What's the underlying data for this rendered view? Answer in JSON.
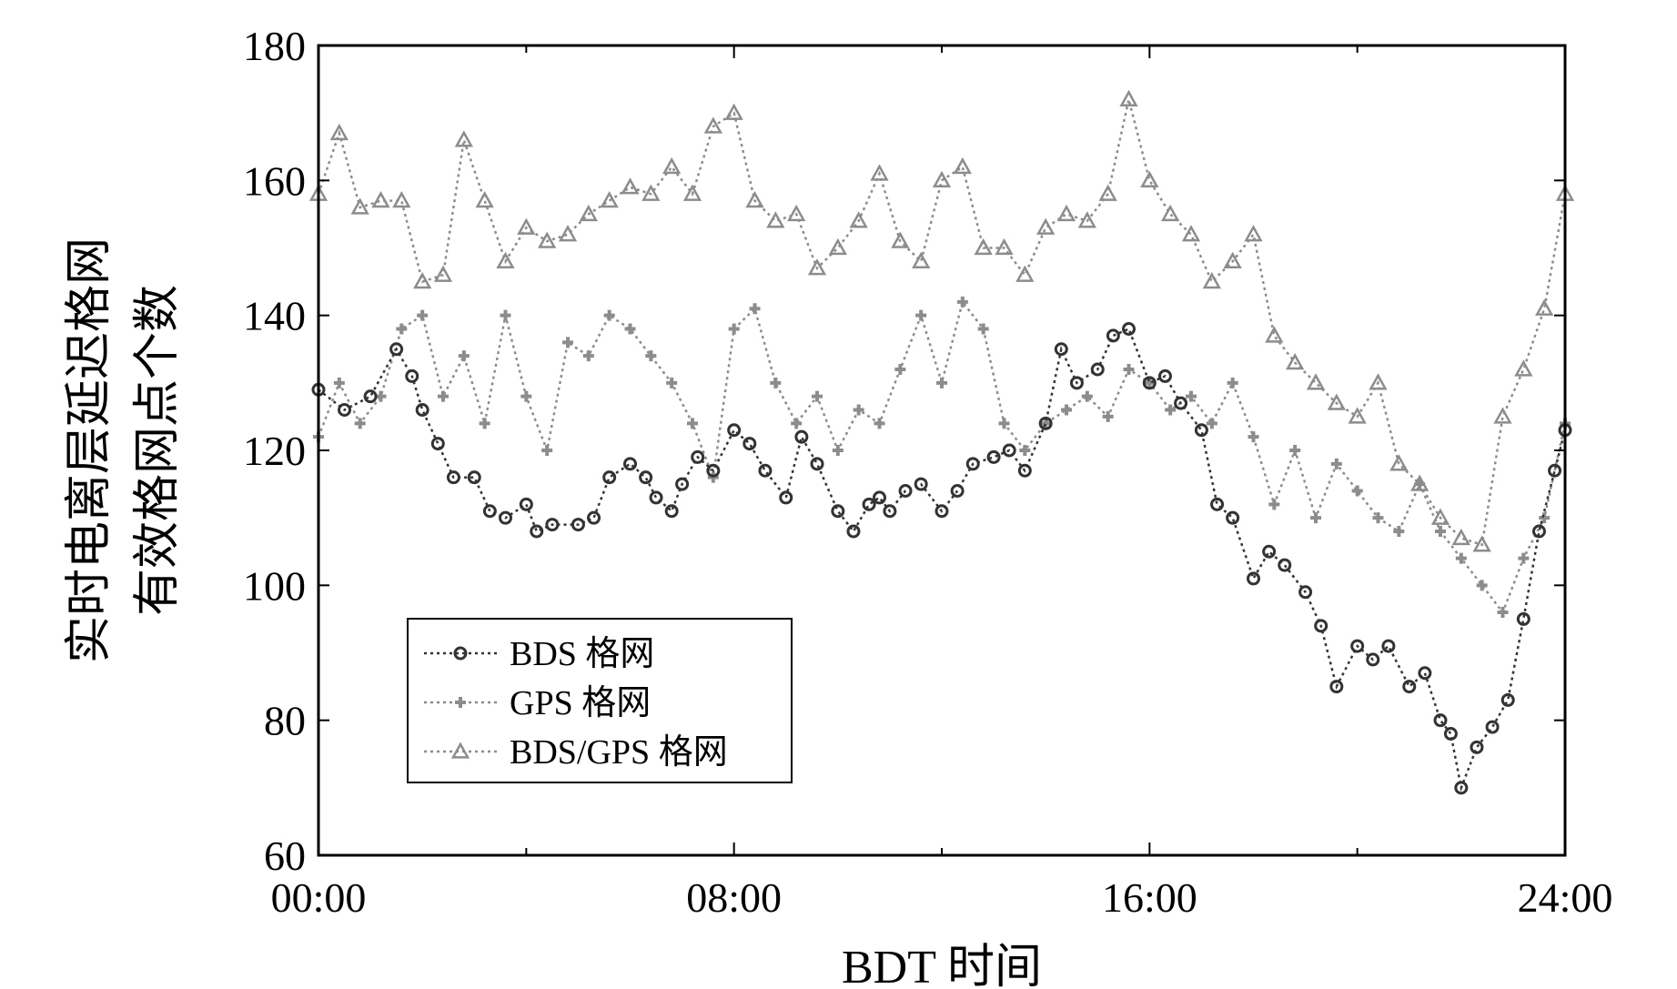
{
  "chart_data": {
    "type": "line",
    "title": "",
    "xlabel": "BDT 时间",
    "ylabel_lines": [
      "实时电离层延迟格网",
      "有效格网点个数"
    ],
    "xlim": [
      0,
      24
    ],
    "ylim": [
      60,
      180
    ],
    "x_ticks": [
      0,
      8,
      16,
      24
    ],
    "x_tick_labels": [
      "00:00",
      "08:00",
      "16:00",
      "24:00"
    ],
    "x_minor_ticks": [
      4,
      12,
      20
    ],
    "y_ticks": [
      60,
      80,
      100,
      120,
      140,
      160,
      180
    ],
    "y_tick_labels": [
      "60",
      "80",
      "100",
      "120",
      "140",
      "160",
      "180"
    ],
    "grid": false,
    "legend_position": "lower-left",
    "series": [
      {
        "name": "BDS 格网",
        "marker": "circle",
        "color": "#333333",
        "x": [
          0,
          0.5,
          1,
          1.5,
          1.8,
          2,
          2.3,
          2.6,
          3,
          3.3,
          3.6,
          4,
          4.2,
          4.5,
          5,
          5.3,
          5.6,
          6,
          6.3,
          6.5,
          6.8,
          7,
          7.3,
          7.6,
          8,
          8.3,
          8.6,
          9,
          9.3,
          9.6,
          10,
          10.3,
          10.6,
          10.8,
          11,
          11.3,
          11.6,
          12,
          12.3,
          12.6,
          13,
          13.3,
          13.6,
          14,
          14.3,
          14.6,
          15,
          15.3,
          15.6,
          16,
          16.3,
          16.6,
          17,
          17.3,
          17.6,
          18,
          18.3,
          18.6,
          19,
          19.3,
          19.6,
          20,
          20.3,
          20.6,
          21,
          21.3,
          21.6,
          21.8,
          22,
          22.3,
          22.6,
          22.9,
          23.2,
          23.5,
          23.8,
          24
        ],
        "y": [
          129,
          126,
          128,
          135,
          131,
          126,
          121,
          116,
          116,
          111,
          110,
          112,
          108,
          109,
          109,
          110,
          116,
          118,
          116,
          113,
          111,
          115,
          119,
          117,
          123,
          121,
          117,
          113,
          122,
          118,
          111,
          108,
          112,
          113,
          111,
          114,
          115,
          111,
          114,
          118,
          119,
          120,
          117,
          124,
          135,
          130,
          132,
          137,
          138,
          130,
          131,
          127,
          123,
          112,
          110,
          101,
          105,
          103,
          99,
          94,
          85,
          91,
          89,
          91,
          85,
          87,
          80,
          78,
          70,
          76,
          79,
          83,
          95,
          108,
          117,
          123
        ]
      },
      {
        "name": "GPS 格网",
        "marker": "plus",
        "color": "#8c8c8c",
        "x": [
          0,
          0.4,
          0.8,
          1.2,
          1.6,
          2,
          2.4,
          2.8,
          3.2,
          3.6,
          4,
          4.4,
          4.8,
          5.2,
          5.6,
          6,
          6.4,
          6.8,
          7.2,
          7.6,
          8,
          8.4,
          8.8,
          9.2,
          9.6,
          10,
          10.4,
          10.8,
          11.2,
          11.6,
          12,
          12.4,
          12.8,
          13.2,
          13.6,
          14,
          14.4,
          14.8,
          15.2,
          15.6,
          16,
          16.4,
          16.8,
          17.2,
          17.6,
          18,
          18.4,
          18.8,
          19.2,
          19.6,
          20,
          20.4,
          20.8,
          21.2,
          21.6,
          22,
          22.4,
          22.8,
          23.2,
          23.6,
          24
        ],
        "y": [
          122,
          130,
          124,
          128,
          138,
          140,
          128,
          134,
          124,
          140,
          128,
          120,
          136,
          134,
          140,
          138,
          134,
          130,
          124,
          116,
          138,
          141,
          130,
          124,
          128,
          120,
          126,
          124,
          132,
          140,
          130,
          142,
          138,
          124,
          120,
          124,
          126,
          128,
          125,
          132,
          130,
          126,
          128,
          124,
          130,
          122,
          112,
          120,
          110,
          118,
          114,
          110,
          108,
          115,
          108,
          104,
          100,
          96,
          104,
          110,
          124
        ]
      },
      {
        "name": "BDS/GPS 格网",
        "marker": "triangle",
        "color": "#8c8c8c",
        "x": [
          0,
          0.4,
          0.8,
          1.2,
          1.6,
          2,
          2.4,
          2.8,
          3.2,
          3.6,
          4,
          4.4,
          4.8,
          5.2,
          5.6,
          6,
          6.4,
          6.8,
          7.2,
          7.6,
          8,
          8.4,
          8.8,
          9.2,
          9.6,
          10,
          10.4,
          10.8,
          11.2,
          11.6,
          12,
          12.4,
          12.8,
          13.2,
          13.6,
          14,
          14.4,
          14.8,
          15.2,
          15.6,
          16,
          16.4,
          16.8,
          17.2,
          17.6,
          18,
          18.4,
          18.8,
          19.2,
          19.6,
          20,
          20.4,
          20.8,
          21.2,
          21.6,
          22,
          22.4,
          22.8,
          23.2,
          23.6,
          24
        ],
        "y": [
          158,
          167,
          156,
          157,
          157,
          145,
          146,
          166,
          157,
          148,
          153,
          151,
          152,
          155,
          157,
          159,
          158,
          162,
          158,
          168,
          170,
          157,
          154,
          155,
          147,
          150,
          154,
          161,
          151,
          148,
          160,
          162,
          150,
          150,
          146,
          153,
          155,
          154,
          158,
          172,
          160,
          155,
          152,
          145,
          148,
          152,
          137,
          133,
          130,
          127,
          125,
          130,
          118,
          115,
          110,
          107,
          106,
          125,
          132,
          141,
          158
        ]
      }
    ]
  }
}
